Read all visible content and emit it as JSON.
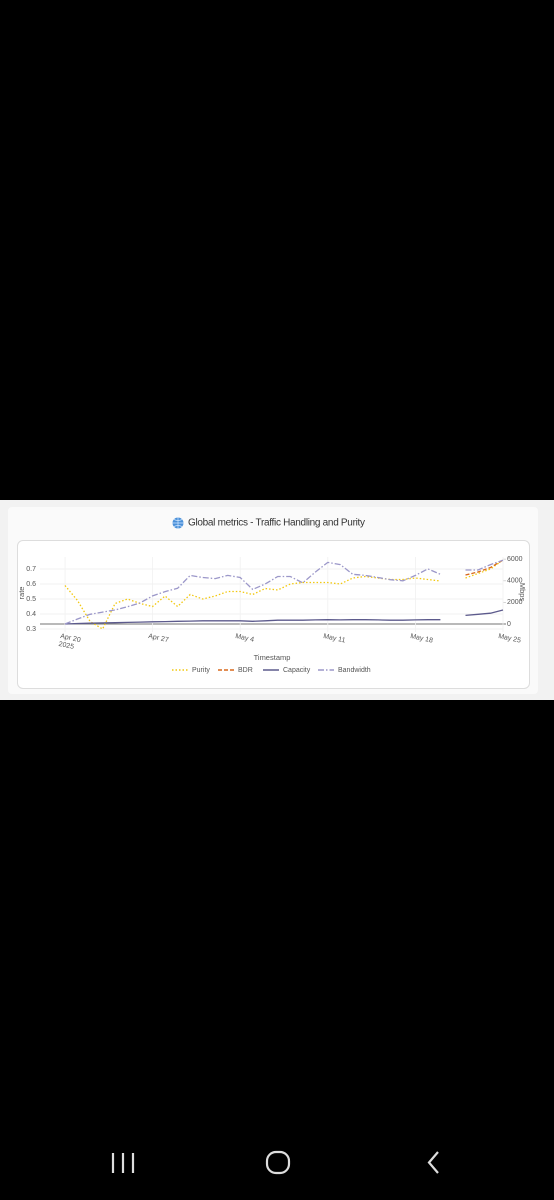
{
  "chart_data": {
    "type": "line",
    "title": "Global metrics - Traffic Handling and Purity",
    "x": [
      "2025-04-20",
      "2025-04-21",
      "2025-04-22",
      "2025-04-23",
      "2025-04-24",
      "2025-04-25",
      "2025-04-26",
      "2025-04-27",
      "2025-04-28",
      "2025-04-29",
      "2025-04-30",
      "2025-05-01",
      "2025-05-02",
      "2025-05-03",
      "2025-05-04",
      "2025-05-05",
      "2025-05-06",
      "2025-05-07",
      "2025-05-08",
      "2025-05-09",
      "2025-05-10",
      "2025-05-11",
      "2025-05-12",
      "2025-05-13",
      "2025-05-14",
      "2025-05-15",
      "2025-05-16",
      "2025-05-17",
      "2025-05-18",
      "2025-05-19",
      "2025-05-20",
      "2025-05-21",
      "2025-05-22",
      "2025-05-23",
      "2025-05-24",
      "2025-05-25"
    ],
    "series": [
      {
        "name": "Purity",
        "color": "#f2c80f",
        "line_style": "dot",
        "axis": "y",
        "values": [
          0.59,
          0.49,
          0.35,
          0.3,
          0.47,
          0.5,
          0.47,
          0.45,
          0.52,
          0.45,
          0.53,
          0.5,
          0.52,
          0.55,
          0.55,
          0.53,
          0.57,
          0.56,
          0.6,
          0.61,
          0.61,
          0.61,
          0.6,
          0.64,
          0.65,
          0.64,
          0.63,
          0.63,
          0.64,
          0.63,
          0.62,
          null,
          0.64,
          0.67,
          0.7,
          0.76
        ]
      },
      {
        "name": "BDR",
        "color": "#d9681c",
        "line_style": "dash",
        "axis": "y",
        "values": [
          null,
          null,
          null,
          null,
          null,
          null,
          null,
          null,
          null,
          null,
          null,
          null,
          null,
          null,
          null,
          null,
          null,
          null,
          null,
          null,
          null,
          null,
          null,
          null,
          null,
          null,
          null,
          null,
          null,
          null,
          null,
          null,
          0.66,
          0.68,
          0.71,
          0.76
        ]
      },
      {
        "name": "Capacity",
        "color": "#5c5a8c",
        "line_style": "solid",
        "axis": "y2",
        "values": [
          0,
          50,
          80,
          100,
          120,
          150,
          180,
          200,
          220,
          250,
          270,
          300,
          300,
          300,
          300,
          250,
          300,
          350,
          350,
          350,
          380,
          400,
          380,
          400,
          400,
          380,
          350,
          350,
          380,
          400,
          400,
          null,
          800,
          900,
          1000,
          1300
        ]
      },
      {
        "name": "Bandwidth",
        "color": "#9b97c9",
        "line_style": "dashdot",
        "axis": "y2",
        "values": [
          0,
          460,
          900,
          1100,
          1300,
          1600,
          1950,
          2600,
          3000,
          3300,
          4500,
          4300,
          4200,
          4500,
          4300,
          3200,
          3700,
          4400,
          4400,
          3800,
          4800,
          5700,
          5500,
          4600,
          4500,
          4300,
          4100,
          4000,
          4500,
          5100,
          4600,
          null,
          5000,
          5000,
          5500,
          5900
        ]
      }
    ],
    "xlim": [
      "2025-04-18",
      "2025-05-25"
    ],
    "xticks": [
      {
        "value": "2025-04-20",
        "label": "Apr 20\n2025"
      },
      {
        "value": "2025-04-27",
        "label": "Apr 27"
      },
      {
        "value": "2025-05-04",
        "label": "May 4"
      },
      {
        "value": "2025-05-11",
        "label": "May 11"
      },
      {
        "value": "2025-05-18",
        "label": "May 18"
      },
      {
        "value": "2025-05-25",
        "label": "May 25"
      }
    ],
    "ylim": [
      0.28,
      0.78
    ],
    "yticks": [
      0.3,
      0.4,
      0.5,
      0.6,
      0.7
    ],
    "y2lim": [
      -740,
      6200
    ],
    "y2ticks": [
      0,
      2000,
      4000,
      6000
    ],
    "xlabel": "Timestamp",
    "ylabel": "rate",
    "y2label": "Mbps",
    "grid": true
  }
}
